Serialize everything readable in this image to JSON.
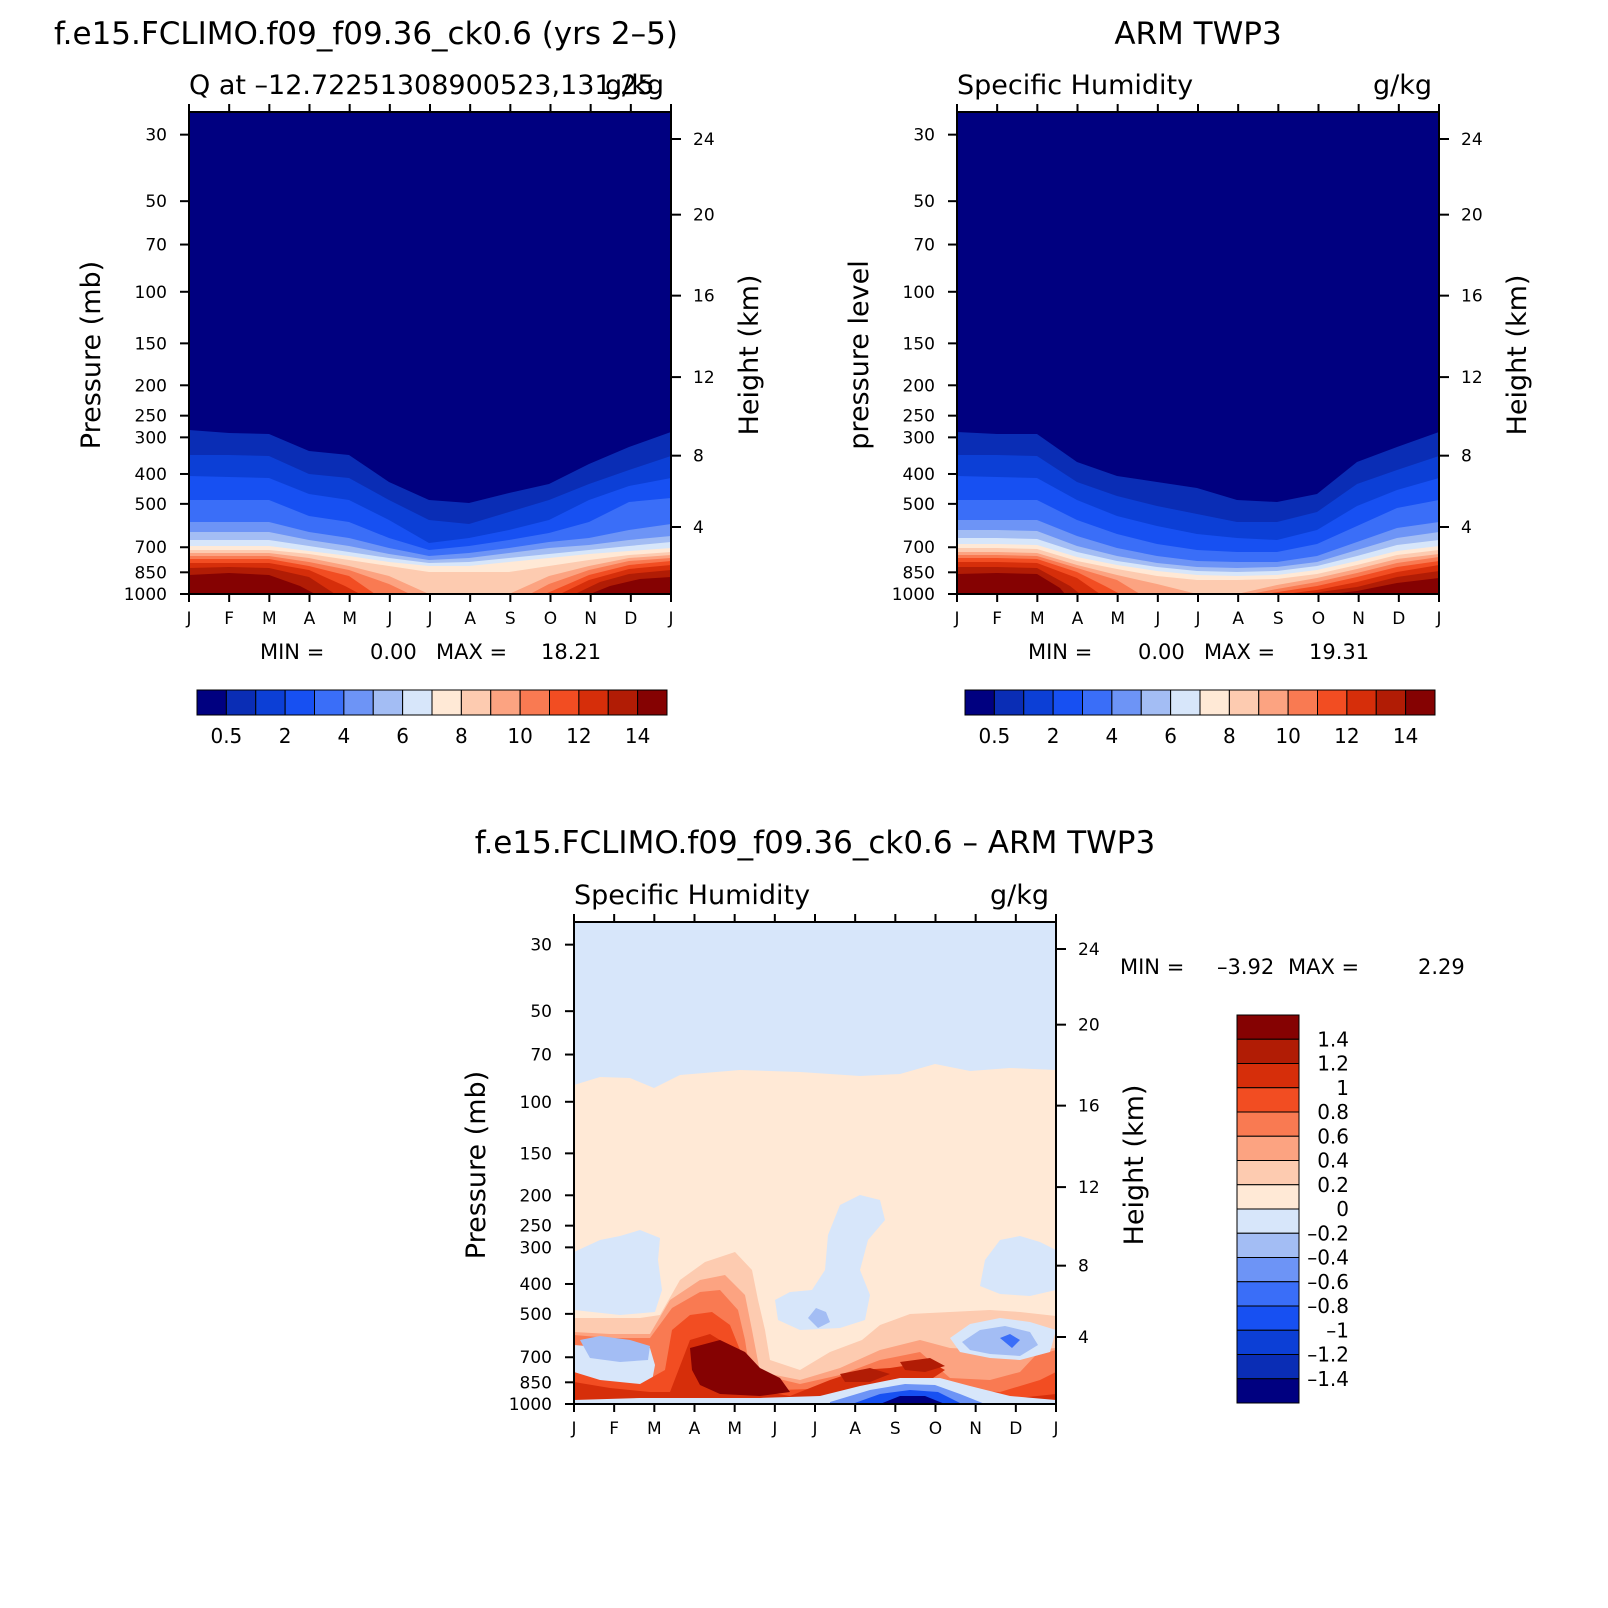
{
  "chart_data": [
    {
      "type": "heatmap",
      "title": "f.e15.FCLIMO.f09_f09.36_ck0.6 (yrs 2–5)",
      "subtitle_left": "Q at –12.72251308900523,131.25",
      "subtitle_right": "g/kg",
      "ylabel": "Pressure (mb)",
      "y2label": "Height (km)",
      "months": [
        "J",
        "F",
        "M",
        "A",
        "M",
        "J",
        "J",
        "A",
        "S",
        "O",
        "N",
        "D",
        "J"
      ],
      "pressure_ticks": [
        "30",
        "50",
        "70",
        "100",
        "150",
        "200",
        "250",
        "300",
        "400",
        "500",
        "700",
        "850",
        "1000"
      ],
      "height_ticks": [
        "24",
        "20",
        "16",
        "12",
        "8",
        "4"
      ],
      "stat_min_label": "MIN =",
      "stat_min": "0.00",
      "stat_max_label": "MAX =",
      "stat_max": "18.21",
      "colorbar_labels": [
        "0.5",
        "2",
        "4",
        "6",
        "8",
        "10",
        "12",
        "14"
      ],
      "colors": [
        "#000080",
        "#0a2db5",
        "#0c3fd6",
        "#1750f2",
        "#3a6ef8",
        "#6d94f6",
        "#a3bdf4",
        "#d7e6fa",
        "#ffe9d6",
        "#fdcbb0",
        "#fca381",
        "#f97a52",
        "#f24d22",
        "#d62e0a",
        "#b11c05",
        "#850202"
      ]
    },
    {
      "type": "heatmap",
      "title": "ARM TWP3",
      "subtitle_left": "Specific Humidity",
      "subtitle_right": "g/kg",
      "ylabel": "pressure level",
      "y2label": "Height (km)",
      "months": [
        "J",
        "F",
        "M",
        "A",
        "M",
        "J",
        "J",
        "A",
        "S",
        "O",
        "N",
        "D",
        "J"
      ],
      "pressure_ticks": [
        "30",
        "50",
        "70",
        "100",
        "150",
        "200",
        "250",
        "300",
        "400",
        "500",
        "700",
        "850",
        "1000"
      ],
      "height_ticks": [
        "24",
        "20",
        "16",
        "12",
        "8",
        "4"
      ],
      "stat_min_label": "MIN =",
      "stat_min": "0.00",
      "stat_max_label": "MAX =",
      "stat_max": "19.31",
      "colorbar_labels": [
        "0.5",
        "2",
        "4",
        "6",
        "8",
        "10",
        "12",
        "14"
      ],
      "colors": [
        "#000080",
        "#0a2db5",
        "#0c3fd6",
        "#1750f2",
        "#3a6ef8",
        "#6d94f6",
        "#a3bdf4",
        "#d7e6fa",
        "#ffe9d6",
        "#fdcbb0",
        "#fca381",
        "#f97a52",
        "#f24d22",
        "#d62e0a",
        "#b11c05",
        "#850202"
      ]
    },
    {
      "type": "heatmap",
      "title": "f.e15.FCLIMO.f09_f09.36_ck0.6 – ARM TWP3",
      "subtitle_left": "Specific Humidity",
      "subtitle_right": "g/kg",
      "ylabel": "Pressure (mb)",
      "y2label": "Height (km)",
      "months": [
        "J",
        "F",
        "M",
        "A",
        "M",
        "J",
        "J",
        "A",
        "S",
        "O",
        "N",
        "D",
        "J"
      ],
      "pressure_ticks": [
        "30",
        "50",
        "70",
        "100",
        "150",
        "200",
        "250",
        "300",
        "400",
        "500",
        "700",
        "850",
        "1000"
      ],
      "height_ticks": [
        "24",
        "20",
        "16",
        "12",
        "8",
        "4"
      ],
      "stat_min_label": "MIN =",
      "stat_min": "–3.92",
      "stat_max_label": "MAX =",
      "stat_max": "2.29",
      "colorbar_labels": [
        "1.4",
        "1.2",
        "1",
        "0.8",
        "0.6",
        "0.4",
        "0.2",
        "0",
        "–0.2",
        "–0.4",
        "–0.6",
        "–0.8",
        "–1",
        "–1.2",
        "–1.4"
      ],
      "colors": [
        "#850202",
        "#b11c05",
        "#d62e0a",
        "#f24d22",
        "#f97a52",
        "#fca381",
        "#fdcbb0",
        "#ffe9d6",
        "#d7e6fa",
        "#a3bdf4",
        "#6d94f6",
        "#3a6ef8",
        "#1750f2",
        "#0c3fd6",
        "#0a2db5",
        "#000080"
      ]
    }
  ]
}
